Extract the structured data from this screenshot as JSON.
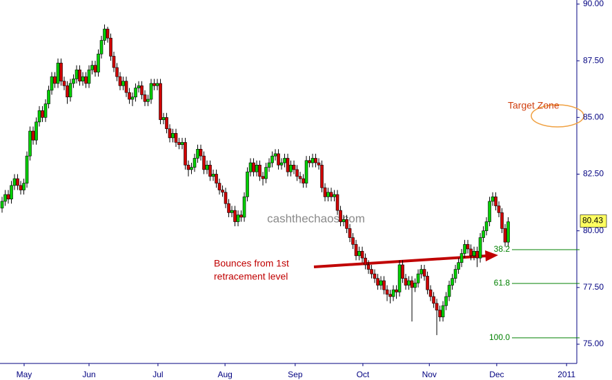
{
  "chart_data": {
    "type": "candlestick",
    "ohlc": [
      [
        81.0,
        81.5,
        80.8,
        81.3
      ],
      [
        81.3,
        81.8,
        81.1,
        81.6
      ],
      [
        81.6,
        81.8,
        81.2,
        81.4
      ],
      [
        81.4,
        82.2,
        81.2,
        82.0
      ],
      [
        82.0,
        82.5,
        81.8,
        82.3
      ],
      [
        82.3,
        82.5,
        81.8,
        82.0
      ],
      [
        82.0,
        82.2,
        81.6,
        81.8
      ],
      [
        81.8,
        82.3,
        81.6,
        82.1
      ],
      [
        82.1,
        83.5,
        81.9,
        83.3
      ],
      [
        83.3,
        84.6,
        83.1,
        84.4
      ],
      [
        84.4,
        84.6,
        83.8,
        84.0
      ],
      [
        84.0,
        85.0,
        83.8,
        84.8
      ],
      [
        84.8,
        85.5,
        84.6,
        85.3
      ],
      [
        85.3,
        85.5,
        84.8,
        85.0
      ],
      [
        85.0,
        85.8,
        84.8,
        85.6
      ],
      [
        85.6,
        86.4,
        85.4,
        86.2
      ],
      [
        86.2,
        87.0,
        86.0,
        86.8
      ],
      [
        86.8,
        87.0,
        86.3,
        86.5
      ],
      [
        86.5,
        87.6,
        86.3,
        87.4
      ],
      [
        87.4,
        87.6,
        86.4,
        86.6
      ],
      [
        86.6,
        86.8,
        86.2,
        86.4
      ],
      [
        86.4,
        86.6,
        85.6,
        85.9
      ],
      [
        85.9,
        86.7,
        85.7,
        86.5
      ],
      [
        86.5,
        86.9,
        86.3,
        86.7
      ],
      [
        86.7,
        87.3,
        86.5,
        87.1
      ],
      [
        87.1,
        87.3,
        86.4,
        86.6
      ],
      [
        86.6,
        87.0,
        86.4,
        86.8
      ],
      [
        86.8,
        87.0,
        86.3,
        86.5
      ],
      [
        86.5,
        87.3,
        86.3,
        87.1
      ],
      [
        87.1,
        87.5,
        86.9,
        87.3
      ],
      [
        87.3,
        87.5,
        86.8,
        87.0
      ],
      [
        87.0,
        88.0,
        86.8,
        87.8
      ],
      [
        87.8,
        88.6,
        87.6,
        88.4
      ],
      [
        88.4,
        89.1,
        88.2,
        88.9
      ],
      [
        88.9,
        89.0,
        88.3,
        88.5
      ],
      [
        88.5,
        88.7,
        87.5,
        87.7
      ],
      [
        87.7,
        87.9,
        87.0,
        87.2
      ],
      [
        87.2,
        87.4,
        86.6,
        86.8
      ],
      [
        86.8,
        87.0,
        86.2,
        86.4
      ],
      [
        86.4,
        86.8,
        86.2,
        86.6
      ],
      [
        86.6,
        86.8,
        85.9,
        86.1
      ],
      [
        86.1,
        86.3,
        85.6,
        85.8
      ],
      [
        85.8,
        86.1,
        85.5,
        85.9
      ],
      [
        85.9,
        86.5,
        85.7,
        86.3
      ],
      [
        86.3,
        86.6,
        86.1,
        86.4
      ],
      [
        86.4,
        86.6,
        85.8,
        86.0
      ],
      [
        86.0,
        86.2,
        85.5,
        85.7
      ],
      [
        85.7,
        86.0,
        85.5,
        85.8
      ],
      [
        85.8,
        86.7,
        85.6,
        86.5
      ],
      [
        86.5,
        86.7,
        86.2,
        86.4
      ],
      [
        86.4,
        86.7,
        86.2,
        86.5
      ],
      [
        86.5,
        86.7,
        84.7,
        84.9
      ],
      [
        84.9,
        85.2,
        84.7,
        85.0
      ],
      [
        85.0,
        85.2,
        84.3,
        84.5
      ],
      [
        84.5,
        84.7,
        83.9,
        84.1
      ],
      [
        84.1,
        84.5,
        83.9,
        84.3
      ],
      [
        84.3,
        84.5,
        83.7,
        83.9
      ],
      [
        83.9,
        84.1,
        83.6,
        83.8
      ],
      [
        83.8,
        84.1,
        83.6,
        83.9
      ],
      [
        83.9,
        84.1,
        82.7,
        82.9
      ],
      [
        82.9,
        83.1,
        82.4,
        82.7
      ],
      [
        82.7,
        83.0,
        82.5,
        82.8
      ],
      [
        82.8,
        83.4,
        82.6,
        83.2
      ],
      [
        83.2,
        83.8,
        83.0,
        83.6
      ],
      [
        83.6,
        83.8,
        83.1,
        83.3
      ],
      [
        83.3,
        83.5,
        82.5,
        82.7
      ],
      [
        82.7,
        83.1,
        82.5,
        82.9
      ],
      [
        82.9,
        83.1,
        82.2,
        82.4
      ],
      [
        82.4,
        82.7,
        82.2,
        82.5
      ],
      [
        82.5,
        82.7,
        81.9,
        82.1
      ],
      [
        82.1,
        82.3,
        81.6,
        81.8
      ],
      [
        81.8,
        82.0,
        81.5,
        81.7
      ],
      [
        81.7,
        81.9,
        81.0,
        81.2
      ],
      [
        81.2,
        81.4,
        80.6,
        80.8
      ],
      [
        80.8,
        81.1,
        80.6,
        80.9
      ],
      [
        80.9,
        81.1,
        80.2,
        80.4
      ],
      [
        80.4,
        80.9,
        80.2,
        80.7
      ],
      [
        80.7,
        80.9,
        80.4,
        80.6
      ],
      [
        80.6,
        81.7,
        80.4,
        81.5
      ],
      [
        81.5,
        82.8,
        81.3,
        82.6
      ],
      [
        82.6,
        83.2,
        82.4,
        83.0
      ],
      [
        83.0,
        83.2,
        82.4,
        82.6
      ],
      [
        82.6,
        83.1,
        82.4,
        82.9
      ],
      [
        82.9,
        83.1,
        82.2,
        82.4
      ],
      [
        82.4,
        82.6,
        82.0,
        82.3
      ],
      [
        82.3,
        83.0,
        82.1,
        82.8
      ],
      [
        82.8,
        83.2,
        82.6,
        83.0
      ],
      [
        83.0,
        83.5,
        82.8,
        83.3
      ],
      [
        83.3,
        83.6,
        83.1,
        83.4
      ],
      [
        83.4,
        83.6,
        82.7,
        82.9
      ],
      [
        82.9,
        83.2,
        82.7,
        83.0
      ],
      [
        83.0,
        83.4,
        82.8,
        83.2
      ],
      [
        83.2,
        83.4,
        82.4,
        82.6
      ],
      [
        82.6,
        83.1,
        82.4,
        82.9
      ],
      [
        82.9,
        83.1,
        82.5,
        82.7
      ],
      [
        82.7,
        82.9,
        82.2,
        82.4
      ],
      [
        82.4,
        82.6,
        82.1,
        82.3
      ],
      [
        82.3,
        82.5,
        81.9,
        82.1
      ],
      [
        82.1,
        83.3,
        81.9,
        83.1
      ],
      [
        83.1,
        83.3,
        82.8,
        83.0
      ],
      [
        83.0,
        83.4,
        82.8,
        83.2
      ],
      [
        83.2,
        83.4,
        82.8,
        83.0
      ],
      [
        83.0,
        83.2,
        82.7,
        82.9
      ],
      [
        82.9,
        83.1,
        81.7,
        81.9
      ],
      [
        81.9,
        82.1,
        81.3,
        81.5
      ],
      [
        81.5,
        81.9,
        81.3,
        81.7
      ],
      [
        81.7,
        81.9,
        81.3,
        81.5
      ],
      [
        81.5,
        81.8,
        81.3,
        81.6
      ],
      [
        81.6,
        81.8,
        80.7,
        80.9
      ],
      [
        80.9,
        81.1,
        80.2,
        80.4
      ],
      [
        80.4,
        80.7,
        80.2,
        80.5
      ],
      [
        80.5,
        80.7,
        79.9,
        80.1
      ],
      [
        80.1,
        80.3,
        79.5,
        79.7
      ],
      [
        79.7,
        79.9,
        79.2,
        79.4
      ],
      [
        79.4,
        79.6,
        78.7,
        78.9
      ],
      [
        78.9,
        79.3,
        78.7,
        79.1
      ],
      [
        79.1,
        79.3,
        78.6,
        78.8
      ],
      [
        78.8,
        79.0,
        78.3,
        78.5
      ],
      [
        78.5,
        78.7,
        78.1,
        78.3
      ],
      [
        78.3,
        78.5,
        77.9,
        78.1
      ],
      [
        78.1,
        78.3,
        77.7,
        77.9
      ],
      [
        77.9,
        78.1,
        77.4,
        77.6
      ],
      [
        77.6,
        78.0,
        77.4,
        77.8
      ],
      [
        77.8,
        78.0,
        77.2,
        77.4
      ],
      [
        77.4,
        77.6,
        76.9,
        77.2
      ],
      [
        77.2,
        77.4,
        76.8,
        77.1
      ],
      [
        77.1,
        77.6,
        76.9,
        77.4
      ],
      [
        77.4,
        77.6,
        77.0,
        77.3
      ],
      [
        77.3,
        78.7,
        77.1,
        78.5
      ],
      [
        78.5,
        78.7,
        77.7,
        77.9
      ],
      [
        77.9,
        78.1,
        77.4,
        77.6
      ],
      [
        77.6,
        78.0,
        77.4,
        77.8
      ],
      [
        77.8,
        78.0,
        76.0,
        77.5
      ],
      [
        77.5,
        77.9,
        77.3,
        77.7
      ],
      [
        77.7,
        78.3,
        77.5,
        78.1
      ],
      [
        78.1,
        78.5,
        77.9,
        78.3
      ],
      [
        78.3,
        78.5,
        77.8,
        78.0
      ],
      [
        78.0,
        78.2,
        77.2,
        77.4
      ],
      [
        77.4,
        77.6,
        76.9,
        77.1
      ],
      [
        77.1,
        77.3,
        76.6,
        76.8
      ],
      [
        76.8,
        77.0,
        75.4,
        76.5
      ],
      [
        76.5,
        76.7,
        76.0,
        76.2
      ],
      [
        76.2,
        76.9,
        76.0,
        76.7
      ],
      [
        76.7,
        77.3,
        76.5,
        77.1
      ],
      [
        77.1,
        77.8,
        76.9,
        77.6
      ],
      [
        77.6,
        78.1,
        77.4,
        77.9
      ],
      [
        77.9,
        78.5,
        77.7,
        78.3
      ],
      [
        78.3,
        78.8,
        78.1,
        78.6
      ],
      [
        78.6,
        79.2,
        78.4,
        79.0
      ],
      [
        79.0,
        79.6,
        78.8,
        79.4
      ],
      [
        79.4,
        79.6,
        79.0,
        79.2
      ],
      [
        79.2,
        79.4,
        78.7,
        78.9
      ],
      [
        78.9,
        79.3,
        78.7,
        79.1
      ],
      [
        79.1,
        79.3,
        78.4,
        78.8
      ],
      [
        78.8,
        79.9,
        78.6,
        79.7
      ],
      [
        79.7,
        80.2,
        79.5,
        80.0
      ],
      [
        80.0,
        80.6,
        79.8,
        80.4
      ],
      [
        80.4,
        81.5,
        80.2,
        81.3
      ],
      [
        81.3,
        81.7,
        81.1,
        81.5
      ],
      [
        81.5,
        81.7,
        80.9,
        81.1
      ],
      [
        81.1,
        81.3,
        80.6,
        80.8
      ],
      [
        80.8,
        81.0,
        79.9,
        80.1
      ],
      [
        80.1,
        80.3,
        79.3,
        79.5
      ],
      [
        79.5,
        80.6,
        79.3,
        80.4
      ]
    ],
    "up_color": "#00d000",
    "down_color": "#d00000",
    "xlim": [
      -0.67,
      185.1
    ],
    "xticks": [
      {
        "value": 7.1,
        "label": "May"
      },
      {
        "value": 28,
        "label": "Jun"
      },
      {
        "value": 50.2,
        "label": "Jul"
      },
      {
        "value": 71.8,
        "label": "Aug"
      },
      {
        "value": 94.4,
        "label": "Sep"
      },
      {
        "value": 116.2,
        "label": "Oct"
      },
      {
        "value": 137.6,
        "label": "Nov"
      },
      {
        "value": 159.3,
        "label": "Dec"
      },
      {
        "value": 181.8,
        "label": "2011"
      }
    ],
    "ylim": [
      74.15,
      90.18
    ],
    "yticks": [
      {
        "value": 75,
        "label": "75.00"
      },
      {
        "value": 77.5,
        "label": "77.50"
      },
      {
        "value": 80,
        "label": "80.00"
      },
      {
        "value": 82.5,
        "label": "82.50"
      },
      {
        "value": 85,
        "label": "85.00"
      },
      {
        "value": 87.5,
        "label": "87.50"
      },
      {
        "value": 90,
        "label": "90.00"
      }
    ],
    "last_price": 80.43,
    "fib_levels": [
      {
        "value": 79.17,
        "label": "38.2"
      },
      {
        "value": 77.68,
        "label": "61.8"
      },
      {
        "value": 75.28,
        "label": "100.0"
      }
    ],
    "annotations": {
      "target": "Target Zone",
      "bounce": [
        "Bounces from 1st",
        "retracement level"
      ]
    },
    "watermark": "cashthechaos.com"
  }
}
